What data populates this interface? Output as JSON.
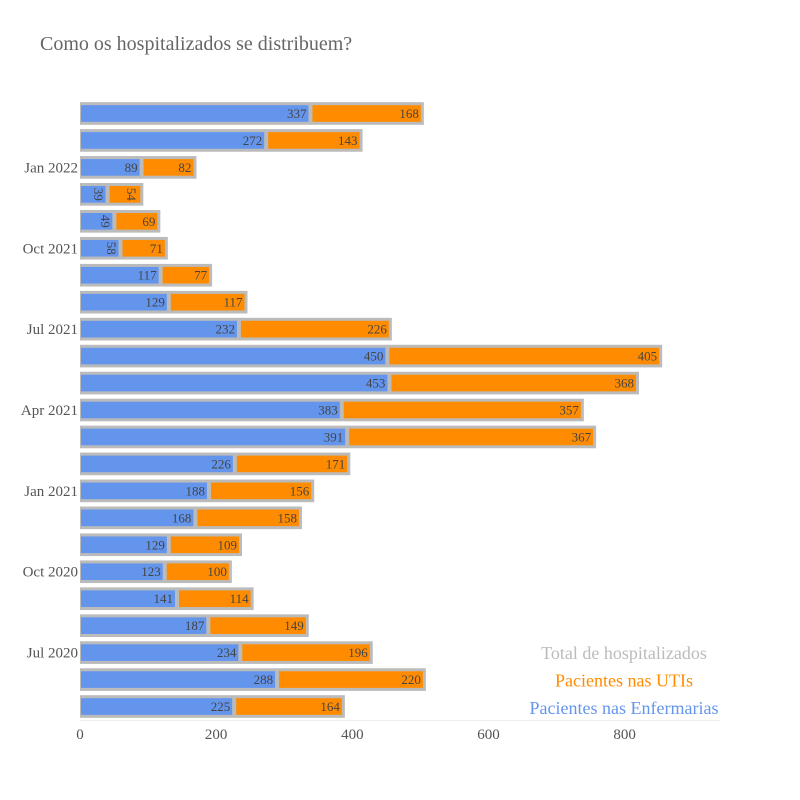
{
  "chart_data": {
    "type": "bar",
    "orientation": "horizontal",
    "barmode": "stack",
    "title": "Como os hospitalizados se distribuem?",
    "xlabel": "",
    "ylabel": "",
    "xlim": [
      0,
      940
    ],
    "x_ticks": [
      0,
      200,
      400,
      600,
      800
    ],
    "y_tick_labels": [
      {
        "label": "Jul 2020",
        "index": 2
      },
      {
        "label": "Oct 2020",
        "index": 5
      },
      {
        "label": "Jan 2021",
        "index": 8
      },
      {
        "label": "Apr 2021",
        "index": 11
      },
      {
        "label": "Jul 2021",
        "index": 14
      },
      {
        "label": "Oct 2021",
        "index": 17
      },
      {
        "label": "Jan 2022",
        "index": 20
      }
    ],
    "grid": false,
    "legend_position": "bottom-right",
    "series": [
      {
        "name": "Pacientes nas Enfermarias",
        "color": "#6495ED",
        "values": [
          225,
          288,
          234,
          187,
          141,
          123,
          129,
          168,
          188,
          226,
          391,
          383,
          453,
          450,
          232,
          129,
          117,
          58,
          49,
          39,
          89,
          272,
          337
        ]
      },
      {
        "name": "Pacientes nas UTIs",
        "color": "#FF8C00",
        "values": [
          164,
          220,
          196,
          149,
          114,
          100,
          109,
          158,
          156,
          171,
          367,
          357,
          368,
          405,
          226,
          117,
          77,
          71,
          69,
          54,
          82,
          143,
          168
        ]
      },
      {
        "name": "Total de hospitalizados",
        "color": "#BBBBBB"
      }
    ],
    "legend_order": [
      "Total de hospitalizados",
      "Pacientes nas UTIs",
      "Pacientes nas Enfermarias"
    ]
  }
}
